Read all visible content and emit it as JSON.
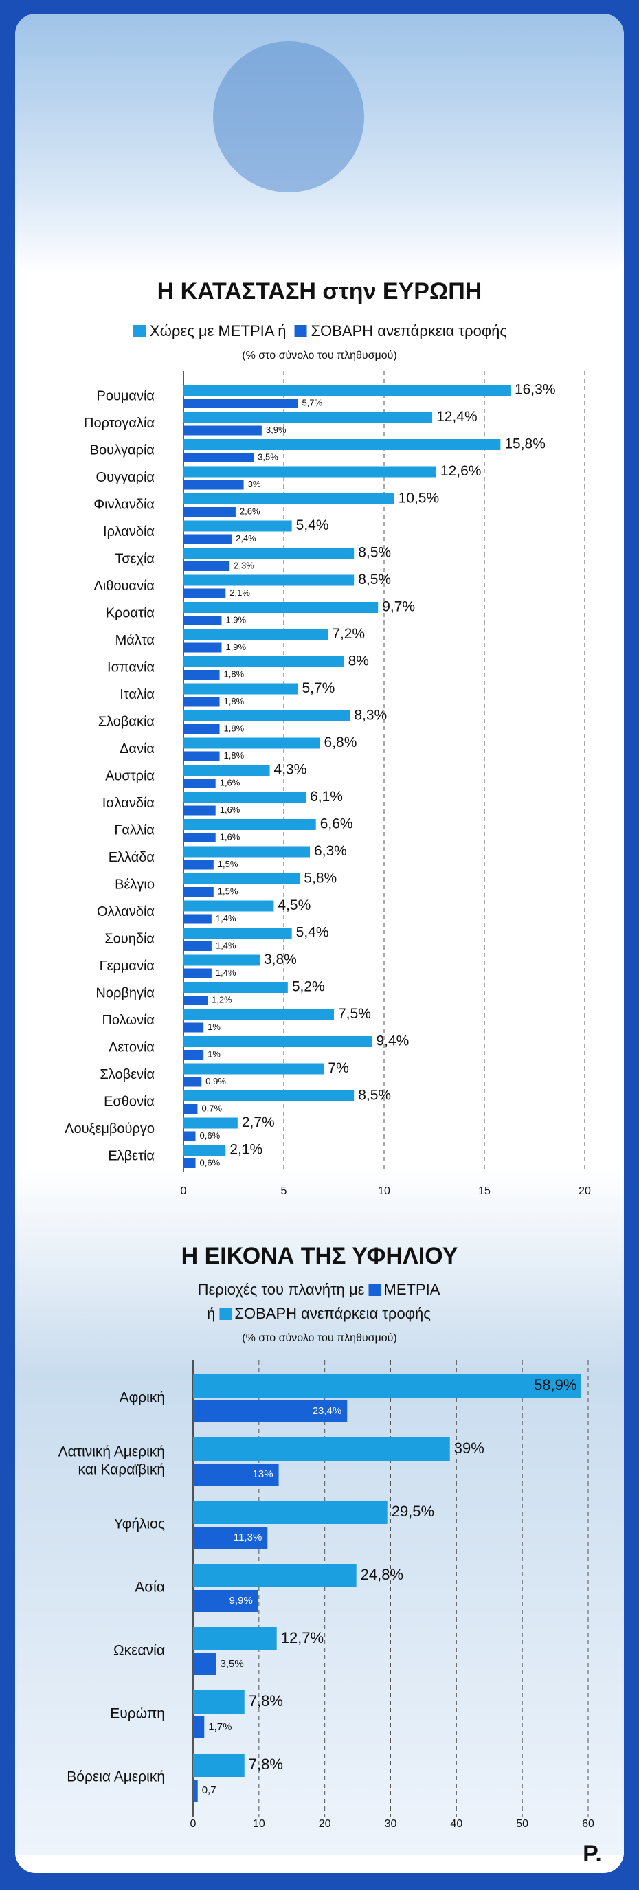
{
  "chart_data": [
    {
      "type": "bar",
      "orientation": "horizontal",
      "title": "Η ΚΑΤΑΣΤΑΣΗ στην ΕΥΡΩΠΗ",
      "subtitle": "(% στο σύνολο του πληθυσμού)",
      "categories": [
        "Ρουμανία",
        "Πορτογαλία",
        "Βουλγαρία",
        "Ουγγαρία",
        "Φινλανδία",
        "Ιρλανδία",
        "Τσεχία",
        "Λιθουανία",
        "Κροατία",
        "Μάλτα",
        "Ισπανία",
        "Ιταλία",
        "Σλοβακία",
        "Δανία",
        "Αυστρία",
        "Ισλανδία",
        "Γαλλία",
        "Ελλάδα",
        "Βέλγιο",
        "Ολλανδία",
        "Σουηδία",
        "Γερμανία",
        "Νορβηγία",
        "Πολωνία",
        "Λετονία",
        "Σλοβενία",
        "Εσθονία",
        "Λουξεμβούργο",
        "Ελβετία"
      ],
      "series": [
        {
          "name": "Χώρες με ΜΕΤΡΙΑ ή",
          "color": "#1c9fe0",
          "values": [
            16.3,
            12.4,
            15.8,
            12.6,
            10.5,
            5.4,
            8.5,
            8.5,
            9.7,
            7.2,
            8,
            5.7,
            8.3,
            6.8,
            4.3,
            6.1,
            6.6,
            6.3,
            5.8,
            4.5,
            5.4,
            3.8,
            5.2,
            7.5,
            9.4,
            7,
            8.5,
            2.7,
            2.1
          ],
          "value_labels": [
            "16,3%",
            "12,4%",
            "15,8%",
            "12,6%",
            "10,5%",
            "5,4%",
            "8,5%",
            "8,5%",
            "9,7%",
            "7,2%",
            "8%",
            "5,7%",
            "8,3%",
            "6,8%",
            "4,3%",
            "6,1%",
            "6,6%",
            "6,3%",
            "5,8%",
            "4,5%",
            "5,4%",
            "3,8%",
            "5,2%",
            "7,5%",
            "9,4%",
            "7%",
            "8,5%",
            "2,7%",
            "2,1%"
          ]
        },
        {
          "name": "ΣΟΒΑΡΗ ανεπάρκεια τροφής",
          "color": "#1662d6",
          "values": [
            5.7,
            3.9,
            3.5,
            3,
            2.6,
            2.4,
            2.3,
            2.1,
            1.9,
            1.9,
            1.8,
            1.8,
            1.8,
            1.8,
            1.6,
            1.6,
            1.6,
            1.5,
            1.5,
            1.4,
            1.4,
            1.4,
            1.2,
            1,
            1,
            0.9,
            0.7,
            0.6,
            0.6
          ],
          "value_labels": [
            "5,7%",
            "3,9%",
            "3,5%",
            "3%",
            "2,6%",
            "2,4%",
            "2,3%",
            "2,1%",
            "1,9%",
            "1,9%",
            "1,8%",
            "1,8%",
            "1,8%",
            "1,8%",
            "1,6%",
            "1,6%",
            "1,6%",
            "1,5%",
            "1,5%",
            "1,4%",
            "1,4%",
            "1,4%",
            "1,2%",
            "1%",
            "1%",
            "0,9%",
            "0,7%",
            "0,6%",
            "0,6%"
          ]
        }
      ],
      "xlim": [
        0,
        20
      ],
      "xticks": [
        0,
        5,
        10,
        15,
        20
      ],
      "grid": true
    },
    {
      "type": "bar",
      "orientation": "horizontal",
      "title": "Η ΕΙΚΟΝΑ ΤΗΣ ΥΦΗΛΙΟΥ",
      "legend_texts": [
        "Περιοχές του πλανήτη με",
        "ή"
      ],
      "subtitle": "(% στο σύνολο του πληθυσμού)",
      "categories": [
        [
          "Αφρική"
        ],
        [
          "Λατινική Αμερική",
          "και Καραϊβική"
        ],
        [
          "Υφήλιος"
        ],
        [
          "Ασία"
        ],
        [
          "Ωκεανία"
        ],
        [
          "Ευρώπη"
        ],
        [
          "Βόρεια Αμερική"
        ]
      ],
      "series": [
        {
          "name": "ΣΟΒΑΡΗ ανεπάρκεια τροφής",
          "color": "#1c9fe0",
          "values": [
            58.9,
            39,
            29.5,
            24.8,
            12.7,
            7.8,
            7.8
          ],
          "value_labels": [
            "58,9%",
            "39%",
            "29,5%",
            "24,8%",
            "12,7%",
            "7,8%",
            "7,8%"
          ]
        },
        {
          "name": "ΜΕΤΡΙΑ",
          "color": "#1662d6",
          "values": [
            23.4,
            13,
            11.3,
            9.9,
            3.5,
            1.7,
            0.7
          ],
          "value_labels": [
            "23,4%",
            "13%",
            "11,3%",
            "9,9%",
            "3,5%",
            "1,7%",
            "0,7"
          ]
        }
      ],
      "xlim": [
        0,
        60
      ],
      "xticks": [
        0,
        10,
        20,
        30,
        40,
        50,
        60
      ],
      "grid": true
    }
  ],
  "logo": "P."
}
